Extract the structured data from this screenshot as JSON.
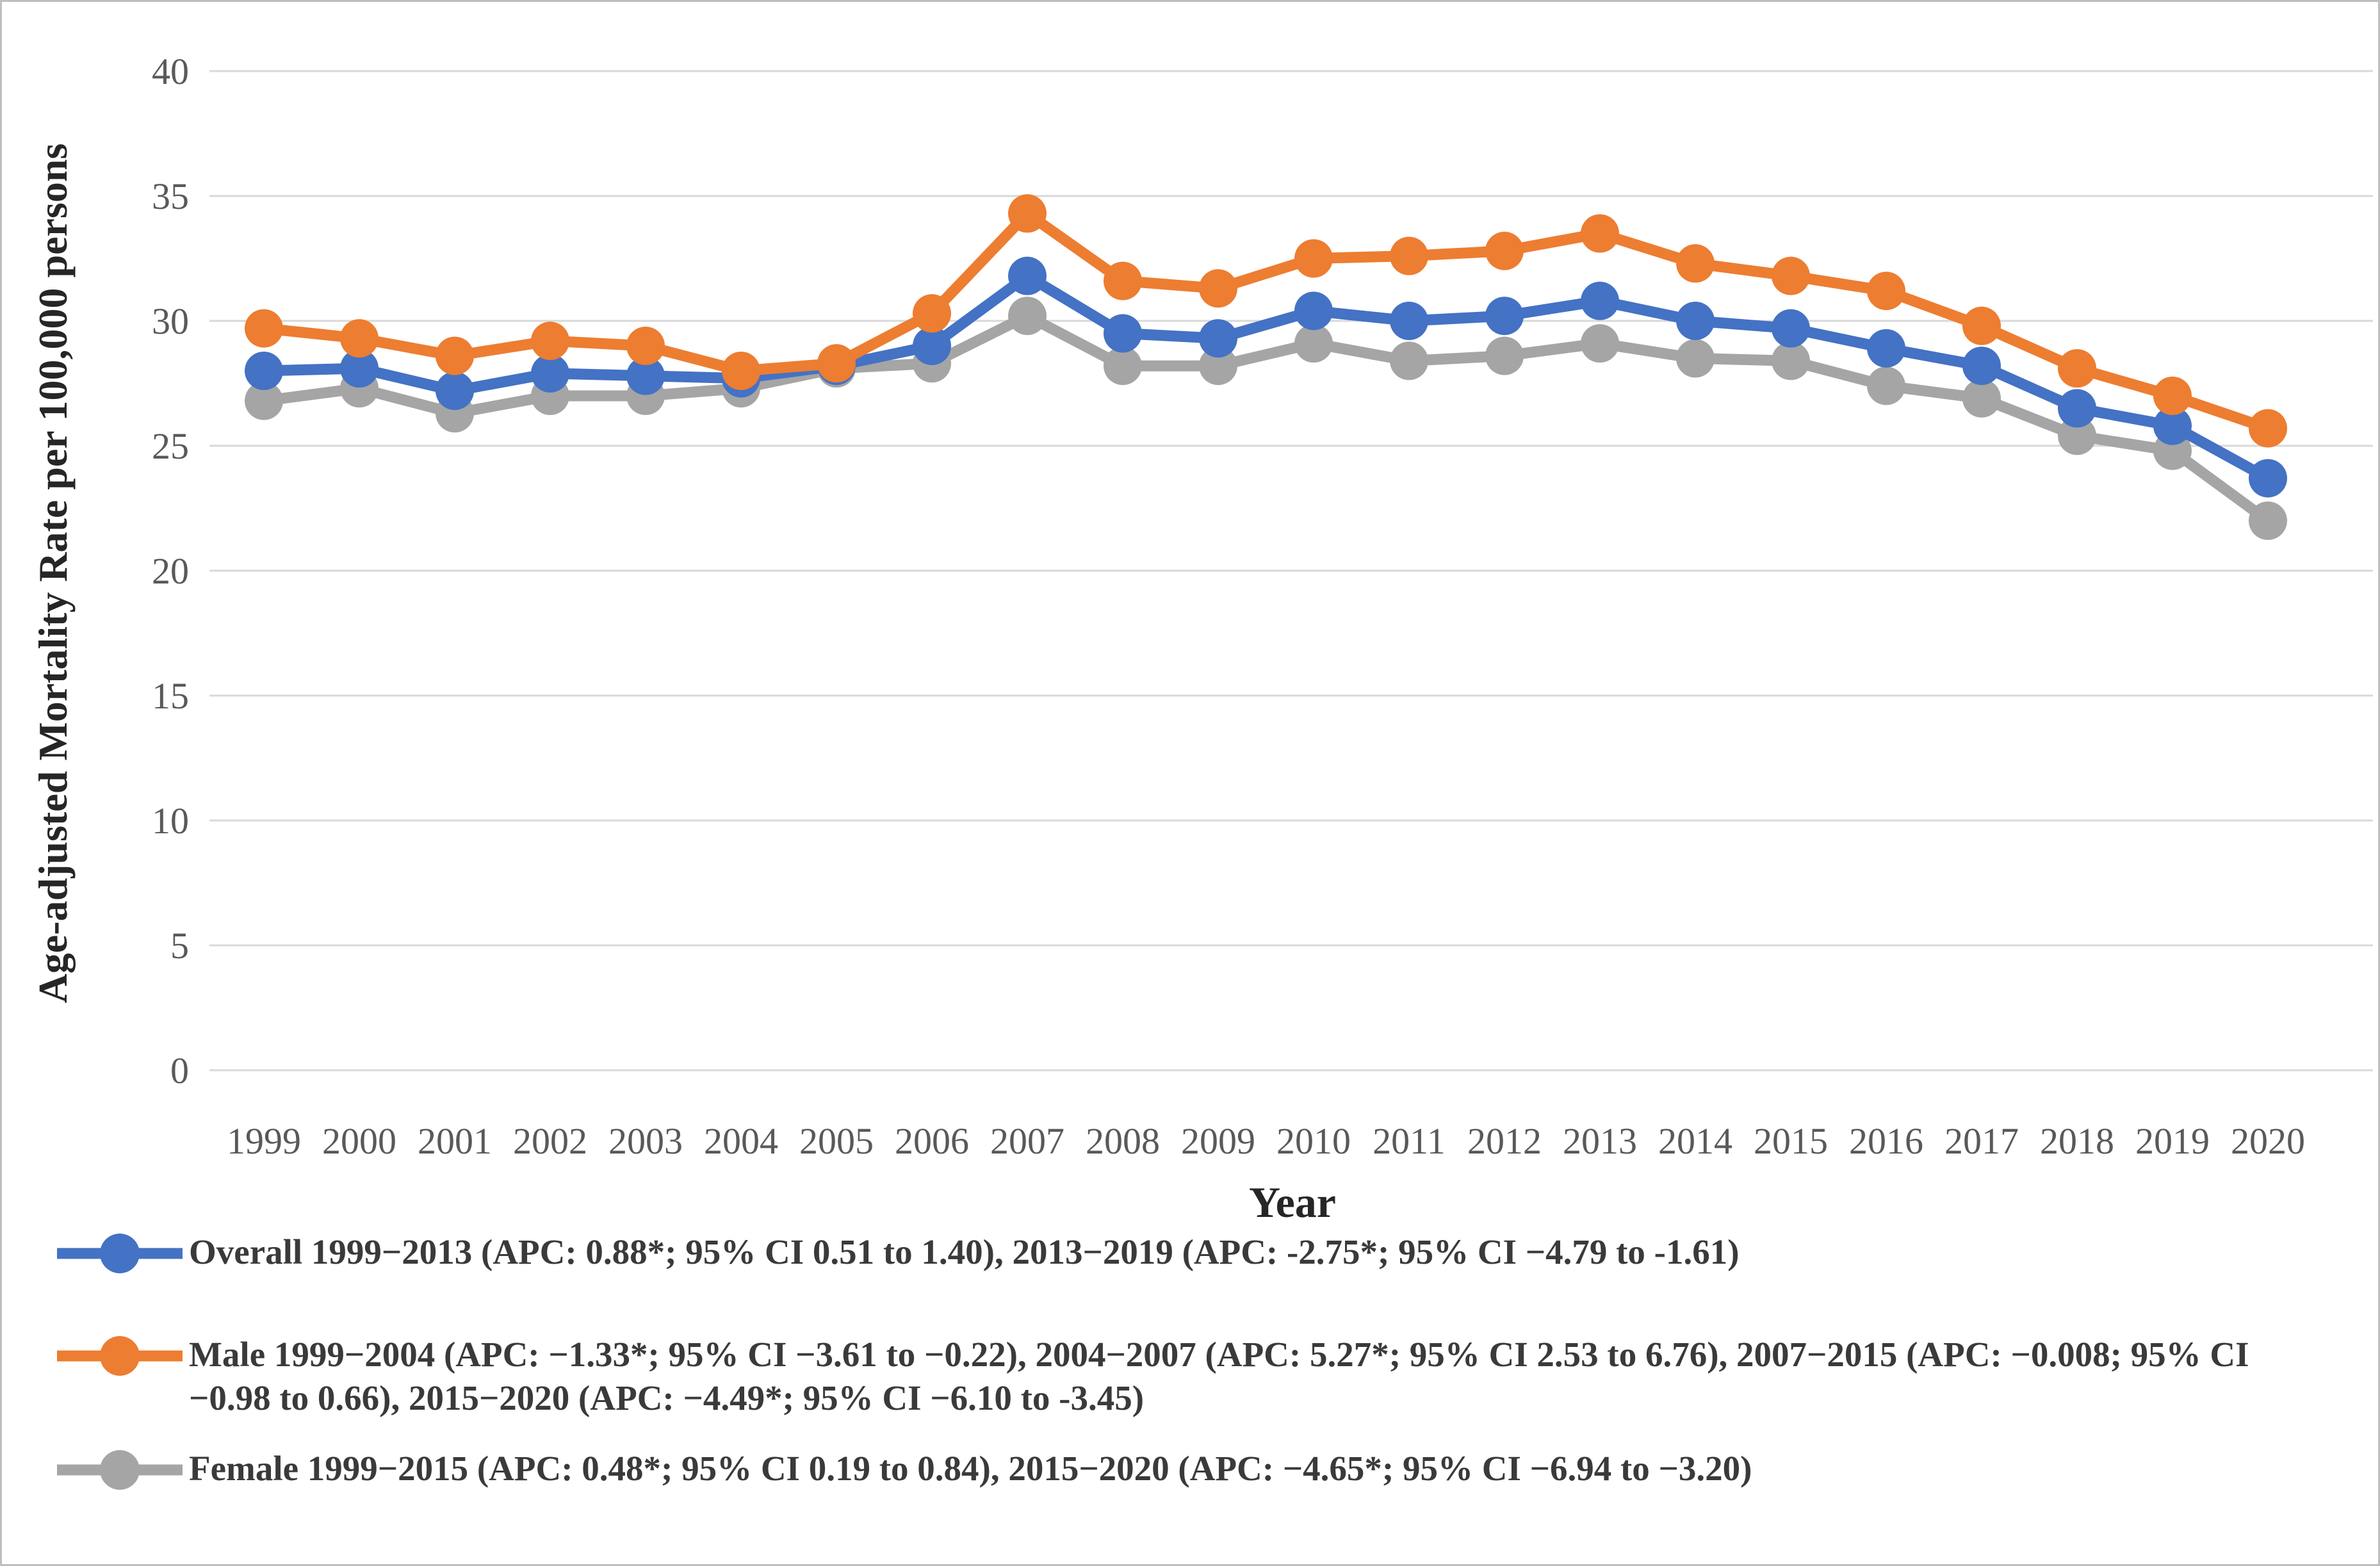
{
  "figure": {
    "x_axis_title": "Year",
    "y_axis_title": "Age-adjusted Mortality Rate per 100,000 persons"
  },
  "chart_data": {
    "type": "line",
    "title": "",
    "xlabel": "Year",
    "ylabel": "Age-adjusted Mortality Rate per 100,000 persons",
    "ylim": [
      0,
      40
    ],
    "ytick_step": 5,
    "grid": "horizontal-only",
    "gridline_color": "#d9d9d9",
    "tick_label_color": "#595959",
    "legend_position": "below-chart-left",
    "x": [
      "1999",
      "2000",
      "2001",
      "2002",
      "2003",
      "2004",
      "2005",
      "2006",
      "2007",
      "2008",
      "2009",
      "2010",
      "2011",
      "2012",
      "2013",
      "2014",
      "2015",
      "2016",
      "2017",
      "2018",
      "2019",
      "2020"
    ],
    "series": [
      {
        "name": "Overall",
        "color": "#4472c4",
        "legend": "Overall 1999−2013 (APC: 0.88*; 95% CI 0.51 to 1.40), 2013−2019 (APC: -2.75*; 95% CI −4.79 to -1.61)",
        "values": [
          28.0,
          28.1,
          27.2,
          27.9,
          27.8,
          27.7,
          28.2,
          29.0,
          31.8,
          29.5,
          29.3,
          30.4,
          30.0,
          30.2,
          30.8,
          30.0,
          29.7,
          28.9,
          28.2,
          26.5,
          25.8,
          23.7
        ]
      },
      {
        "name": "Male",
        "color": "#ed7d31",
        "legend": "Male 1999−2004 (APC: −1.33*; 95% CI −3.61 to −0.22), 2004−2007 (APC: 5.27*; 95% CI 2.53 to 6.76), 2007−2015 (APC: −0.008; 95% CI −0.98 to 0.66), 2015−2020 (APC: −4.49*; 95% CI −6.10 to -3.45)",
        "values": [
          29.7,
          29.3,
          28.6,
          29.2,
          29.0,
          28.0,
          28.3,
          30.3,
          34.3,
          31.6,
          31.3,
          32.5,
          32.6,
          32.8,
          33.5,
          32.3,
          31.8,
          31.2,
          29.8,
          28.1,
          27.0,
          25.7
        ]
      },
      {
        "name": "Female",
        "color": "#a5a5a5",
        "legend": "Female 1999−2015 (APC: 0.48*; 95% CI 0.19 to 0.84), 2015−2020 (APC: −4.65*; 95% CI −6.94 to −3.20)",
        "values": [
          26.8,
          27.3,
          26.3,
          27.0,
          27.0,
          27.3,
          28.1,
          28.3,
          30.2,
          28.2,
          28.2,
          29.1,
          28.4,
          28.6,
          29.1,
          28.5,
          28.4,
          27.4,
          26.9,
          25.4,
          24.8,
          22.0
        ]
      }
    ]
  }
}
